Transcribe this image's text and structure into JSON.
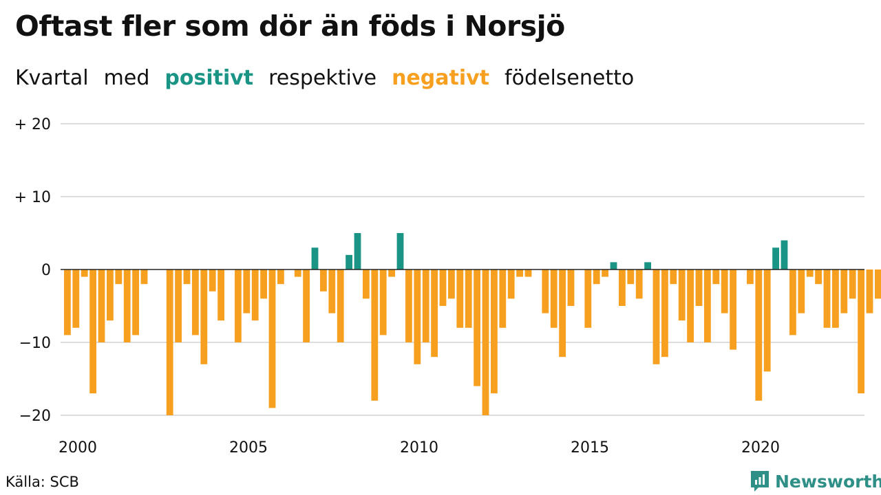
{
  "chart_data": {
    "type": "bar",
    "title": "Oftast fler som dör än föds i Norsjö",
    "subtitle_parts": [
      "Kvartal",
      "med",
      "positivt",
      "respektive",
      "negativt",
      "födelsenetto"
    ],
    "xlabel": "",
    "ylabel": "",
    "ylim": [
      -21,
      21
    ],
    "y_ticks": [
      {
        "value": 20,
        "label": "+ 20"
      },
      {
        "value": 10,
        "label": "+ 10"
      },
      {
        "value": 0,
        "label": "0"
      },
      {
        "value": -10,
        "label": "−10"
      },
      {
        "value": -20,
        "label": "−20"
      }
    ],
    "x_ticks": [
      {
        "value": 2000,
        "label": "2000"
      },
      {
        "value": 2005,
        "label": "2005"
      },
      {
        "value": 2010,
        "label": "2010"
      },
      {
        "value": 2015,
        "label": "2015"
      },
      {
        "value": 2020,
        "label": "2020"
      }
    ],
    "grid": true,
    "positive_color": "#1a9485",
    "negative_color": "#f7a01f",
    "start_year": 2000,
    "periods_per_year": 4,
    "values": [
      -9,
      -8,
      -1,
      -17,
      -10,
      -7,
      -2,
      -10,
      -9,
      -2,
      0,
      0,
      -20,
      -10,
      -2,
      -9,
      -13,
      -3,
      -7,
      0,
      -10,
      -6,
      -7,
      -4,
      -19,
      -2,
      0,
      -1,
      -10,
      3,
      -3,
      -6,
      -10,
      2,
      5,
      -4,
      -18,
      -9,
      -1,
      5,
      -10,
      -13,
      -10,
      -12,
      -5,
      -4,
      -8,
      -8,
      -16,
      -20,
      -17,
      -8,
      -4,
      -1,
      -1,
      0,
      -6,
      -8,
      -12,
      -5,
      0,
      -8,
      -2,
      -1,
      1,
      -5,
      -2,
      -4,
      1,
      -13,
      -12,
      -2,
      -7,
      -10,
      -5,
      -10,
      -2,
      -6,
      -11,
      0,
      -2,
      -18,
      -14,
      3,
      4,
      -9,
      -6,
      -1,
      -2,
      -8,
      -8,
      -6,
      -4,
      -17,
      -6,
      -4
    ]
  },
  "footer": {
    "source": "Källa: SCB",
    "brand": "Newsworthy"
  }
}
